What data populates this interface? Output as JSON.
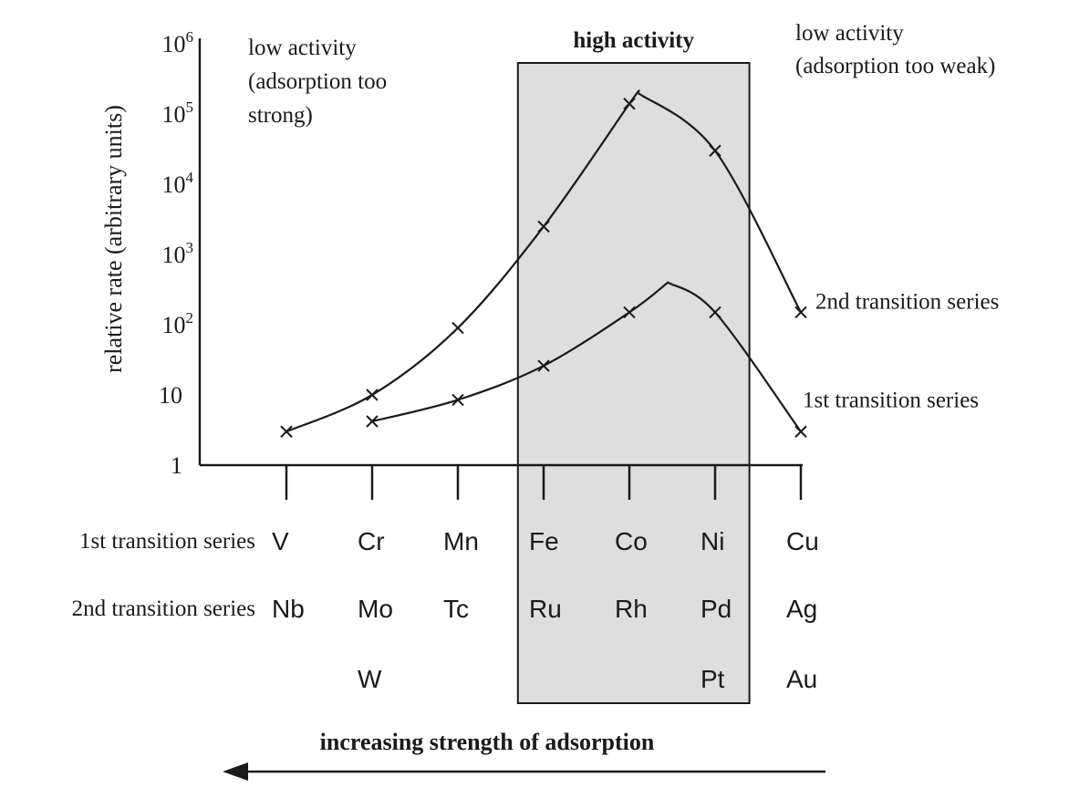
{
  "colors": {
    "ink": "#1a1a1a",
    "highlight_fill": "#dedede",
    "background": "#ffffff"
  },
  "chart_data": {
    "type": "line",
    "y_scale": "log",
    "ylabel": "relative rate (arbitrary units)",
    "y_ticks": [
      {
        "value": 1,
        "base": "1",
        "exp": ""
      },
      {
        "value": 10,
        "base": "10",
        "exp": ""
      },
      {
        "value": 100,
        "base": "10",
        "exp": "2"
      },
      {
        "value": 1000,
        "base": "10",
        "exp": "3"
      },
      {
        "value": 10000,
        "base": "10",
        "exp": "4"
      },
      {
        "value": 100000,
        "base": "10",
        "exp": "5"
      },
      {
        "value": 1000000,
        "base": "10",
        "exp": "6"
      }
    ],
    "ylim": [
      1,
      1000000
    ],
    "positions": [
      1,
      2,
      3,
      4,
      5,
      6,
      7
    ],
    "row_labels": [
      "1st transition series",
      "2nd transition series"
    ],
    "element_rows": [
      [
        "V",
        "Cr",
        "Mn",
        "Fe",
        "Co",
        "Ni",
        "Cu"
      ],
      [
        "Nb",
        "Mo",
        "Tc",
        "Ru",
        "Rh",
        "Pd",
        "Ag"
      ],
      [
        "",
        "W",
        "",
        "",
        "",
        "Pt",
        "Au"
      ]
    ],
    "series": [
      {
        "name": "2nd transition series",
        "points": [
          [
            1,
            3
          ],
          [
            2,
            10
          ],
          [
            3,
            90
          ],
          [
            4,
            2500
          ],
          [
            5,
            140000
          ],
          [
            6,
            30000
          ],
          [
            7,
            150
          ]
        ],
        "peak": [
          5.1,
          200000
        ]
      },
      {
        "name": "1st transition series",
        "points": [
          [
            2,
            4.2
          ],
          [
            3,
            8.5
          ],
          [
            4,
            26
          ],
          [
            5,
            150
          ],
          [
            6,
            150
          ],
          [
            7,
            3
          ]
        ],
        "peak": [
          5.45,
          400
        ]
      }
    ],
    "highlight": {
      "from": 3.7,
      "to": 6.4,
      "label": "high activity"
    },
    "annotations": {
      "left": [
        "low activity",
        "(adsorption too",
        "strong)"
      ],
      "right": [
        "low activity",
        "(adsorption too weak)"
      ]
    },
    "arrow_label": "increasing strength of adsorption"
  }
}
